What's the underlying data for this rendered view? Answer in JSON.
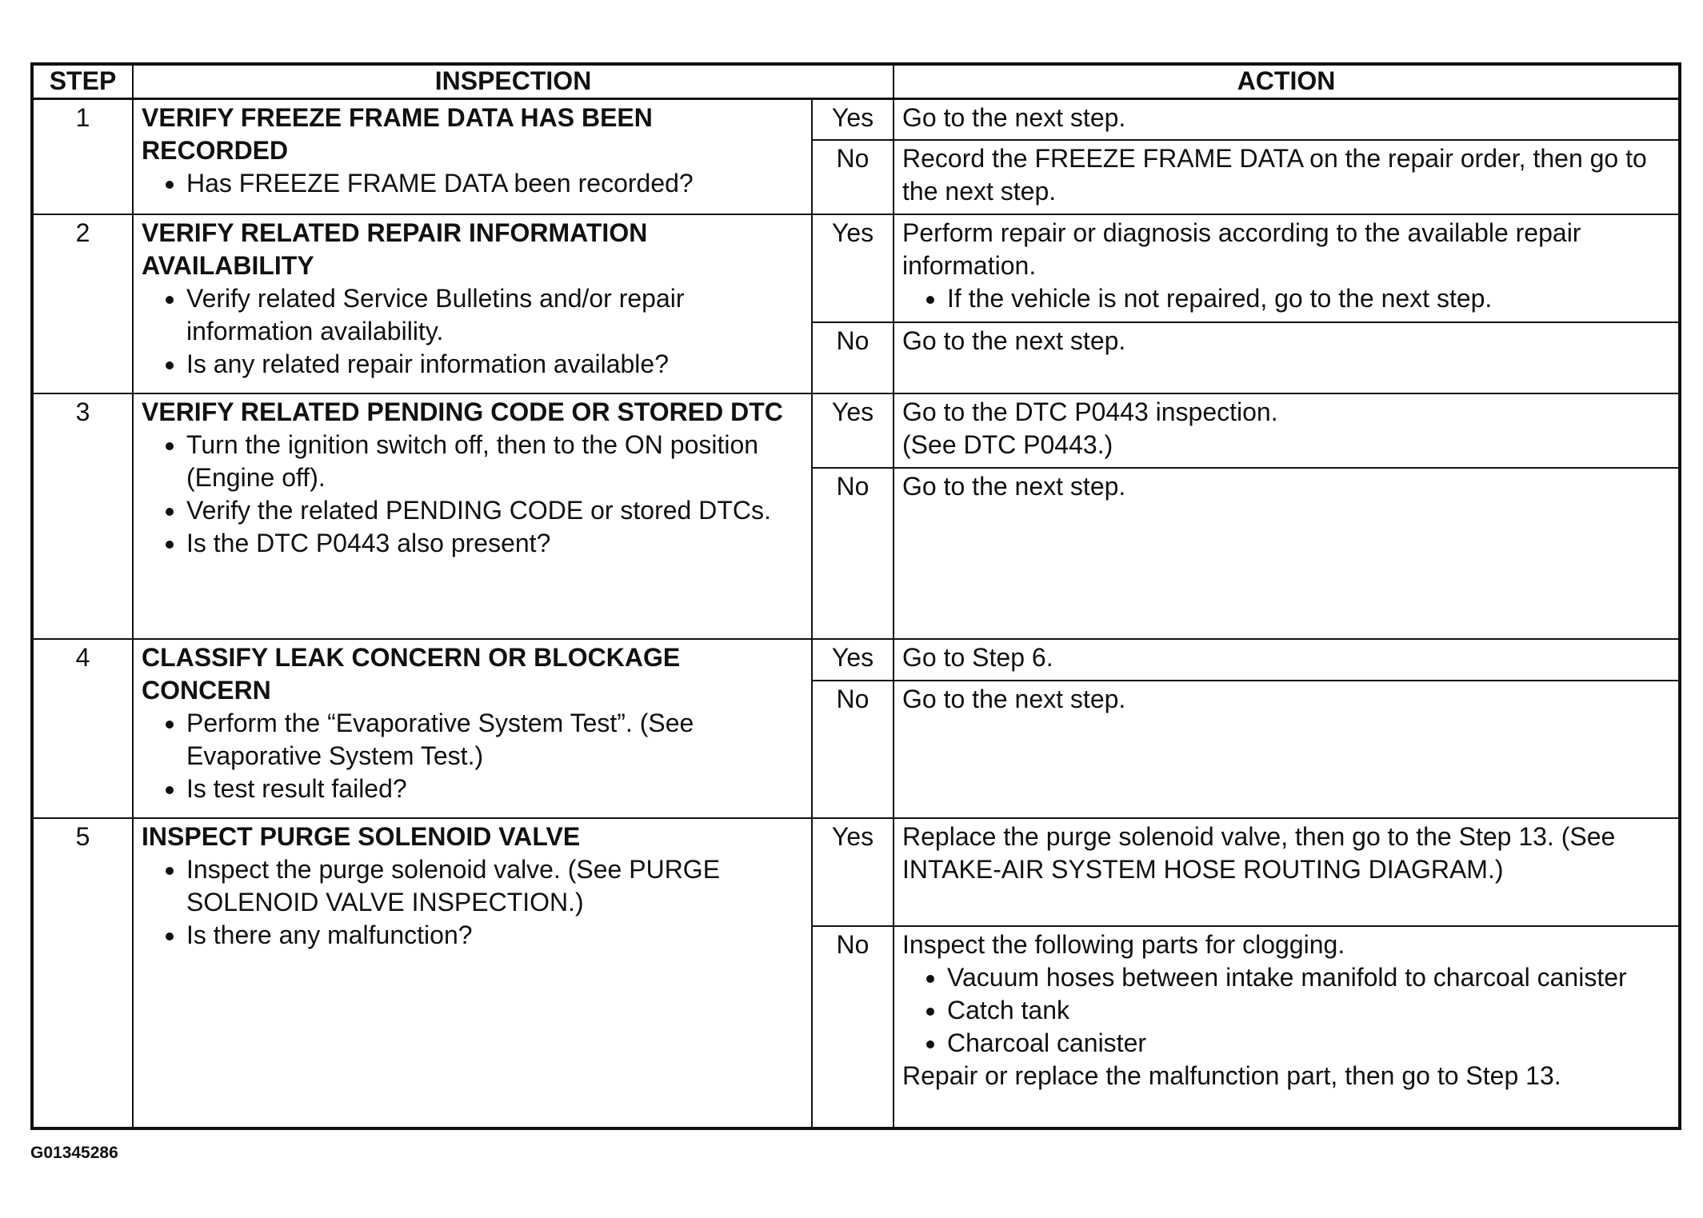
{
  "headers": {
    "step": "STEP",
    "inspection": "INSPECTION",
    "action": "ACTION"
  },
  "steps": [
    {
      "num": "1",
      "title": "VERIFY FREEZE FRAME DATA HAS BEEN RECORDED",
      "bullets": [
        "Has FREEZE FRAME DATA been recorded?"
      ],
      "yes": {
        "label": "Yes",
        "text": "Go to the next step.",
        "bullets": []
      },
      "no": {
        "label": "No",
        "text": "Record the FREEZE FRAME DATA on the repair order, then go to the next step.",
        "bullets": []
      }
    },
    {
      "num": "2",
      "title": "VERIFY RELATED REPAIR INFORMATION AVAILABILITY",
      "bullets": [
        "Verify related Service Bulletins and/or repair information availability.",
        "Is any related repair information available?"
      ],
      "yes": {
        "label": "Yes",
        "text": "Perform repair or diagnosis according to the available repair information.",
        "bullets": [
          "If the vehicle is not repaired, go to the next step."
        ]
      },
      "no": {
        "label": "No",
        "text": "Go to the next step.",
        "bullets": []
      }
    },
    {
      "num": "3",
      "title": "VERIFY RELATED PENDING CODE OR STORED DTC",
      "bullets": [
        "Turn the ignition switch off, then to the ON position (Engine off).",
        "Verify the related PENDING CODE or stored DTCs.",
        "Is the DTC P0443 also present?"
      ],
      "yes": {
        "label": "Yes",
        "text": "Go to the DTC P0443 inspection.\n(See DTC P0443.)",
        "bullets": []
      },
      "no": {
        "label": "No",
        "text": "Go to the next step.",
        "bullets": []
      }
    },
    {
      "num": "4",
      "title": "CLASSIFY LEAK CONCERN OR BLOCKAGE CONCERN",
      "bullets": [
        "Perform the “Evaporative System Test”. (See Evaporative System Test.)",
        "Is test result failed?"
      ],
      "yes": {
        "label": "Yes",
        "text": "Go to Step 6.",
        "bullets": []
      },
      "no": {
        "label": "No",
        "text": "Go to the next step.",
        "bullets": []
      }
    },
    {
      "num": "5",
      "title": "INSPECT PURGE SOLENOID VALVE",
      "bullets": [
        "Inspect the purge solenoid valve. (See PURGE SOLENOID VALVE INSPECTION.)",
        "Is there any malfunction?"
      ],
      "yes": {
        "label": "Yes",
        "text": "Replace the purge solenoid valve, then go to the Step 13. (See INTAKE-AIR SYSTEM HOSE ROUTING DIAGRAM.)",
        "bullets": []
      },
      "no": {
        "label": "No",
        "text": "Inspect the following parts for clogging.",
        "bullets": [
          "Vacuum hoses between intake manifold to charcoal canister",
          "Catch tank",
          "Charcoal canister"
        ],
        "after": "Repair or replace the malfunction part, then go to Step 13."
      }
    }
  ],
  "caption": "G01345286"
}
